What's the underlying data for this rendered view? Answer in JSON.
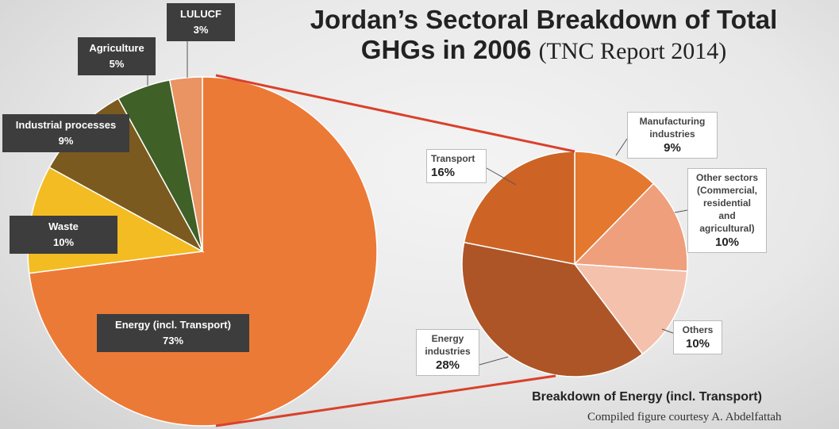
{
  "title": {
    "line1": "Jordan’s Sectoral Breakdown of Total",
    "line2_main": "GHGs in 2006",
    "line2_source": "(TNC Report 2014)"
  },
  "chart_data": [
    {
      "type": "pie",
      "slices": [
        {
          "label": "Energy (incl. Transport)",
          "value": 73,
          "display": "73%",
          "color": "#ec7a37"
        },
        {
          "label": "Waste",
          "value": 10,
          "display": "10%",
          "color": "#f3bc22"
        },
        {
          "label": "Industrial processes",
          "value": 9,
          "display": "9%",
          "color": "#7a5a1f"
        },
        {
          "label": "Agriculture",
          "value": 5,
          "display": "5%",
          "color": "#3f6026"
        },
        {
          "label": "LULUCF",
          "value": 3,
          "display": "3%",
          "color": "#e99462"
        }
      ]
    },
    {
      "type": "pie",
      "title": "Breakdown of Energy (incl. Transport)",
      "slices": [
        {
          "label": "Manufacturing industries",
          "value": 9,
          "display": "9%",
          "color": "#e4782f"
        },
        {
          "label": "Other sectors (Commercial, residential and agricultural)",
          "value": 10,
          "display": "10%",
          "color": "#ef9f7c"
        },
        {
          "label": "Others",
          "value": 10,
          "display": "10%",
          "color": "#f4c1ad"
        },
        {
          "label": "Energy industries",
          "value": 28,
          "display": "28%",
          "color": "#ad5527"
        },
        {
          "label": "Transport",
          "value": 16,
          "display": "16%",
          "color": "#cd6426"
        }
      ]
    }
  ],
  "labels": {
    "lulucf": {
      "name": "LULUCF",
      "pct": "3%"
    },
    "agriculture": {
      "name": "Agriculture",
      "pct": "5%"
    },
    "industrial": {
      "name": "Industrial processes",
      "pct": "9%"
    },
    "waste": {
      "name": "Waste",
      "pct": "10%"
    },
    "energy": {
      "name": "Energy (incl. Transport)",
      "pct": "73%"
    },
    "transport": {
      "name": "Transport",
      "pct": "16%"
    },
    "manufacturing": {
      "name1": "Manufacturing",
      "name2": "industries",
      "pct": "9%"
    },
    "other_sectors": {
      "name1": "Other sectors",
      "name2": "(Commercial,",
      "name3": "residential",
      "name4": "and",
      "name5": "agricultural)",
      "pct": "10%"
    },
    "others": {
      "name": "Others",
      "pct": "10%"
    },
    "energy_industries": {
      "name1": "Energy",
      "name2": "industries",
      "pct": "28%"
    }
  },
  "credit": "Compiled figure courtesy A. Abdelfattah",
  "connector_color": "#d9412b"
}
